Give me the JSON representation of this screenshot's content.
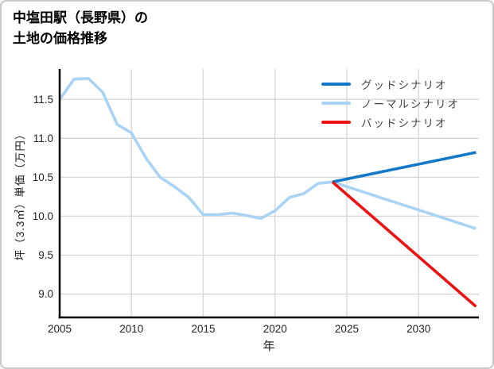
{
  "title": {
    "line1": "中塩田駅（長野県）の",
    "line2": "土地の価格推移"
  },
  "chart_data": {
    "type": "line",
    "title": "中塩田駅（長野県）の土地の価格推移",
    "xlabel": "年",
    "ylabel": "坪（3.3㎡）単価（万円）",
    "x_ticks": [
      2005,
      2010,
      2015,
      2020,
      2025,
      2030
    ],
    "y_ticks": [
      "9.0",
      "9.5",
      "10.0",
      "10.5",
      "11.0",
      "11.5"
    ],
    "xlim": [
      2005,
      2034.2
    ],
    "ylim": [
      8.7,
      11.89
    ],
    "grid": true,
    "grid_color": "#d6d6d6",
    "spine_color": "#000000",
    "legend_position": "upper right",
    "series": [
      {
        "name": "normal-scenario",
        "label": "ノーマルシナリオ",
        "color": "#a8d3f5",
        "x": [
          2005,
          2006,
          2007,
          2008,
          2009,
          2010,
          2011,
          2012,
          2013,
          2014,
          2015,
          2016,
          2017,
          2018,
          2019,
          2020,
          2021,
          2022,
          2023,
          2024,
          2034
        ],
        "y": [
          11.5,
          11.76,
          11.77,
          11.59,
          11.18,
          11.07,
          10.75,
          10.5,
          10.38,
          10.24,
          10.02,
          10.02,
          10.04,
          10.01,
          9.97,
          10.07,
          10.24,
          10.29,
          10.42,
          10.44,
          9.84
        ]
      },
      {
        "name": "good-scenario",
        "label": "グッドシナリオ",
        "color": "#1478c8",
        "x": [
          2024,
          2034
        ],
        "y": [
          10.44,
          10.82
        ]
      },
      {
        "name": "bad-scenario",
        "label": "バッドシナリオ",
        "color": "#ee1111",
        "x": [
          2024,
          2034
        ],
        "y": [
          10.44,
          8.84
        ]
      }
    ],
    "legend_order": [
      "good-scenario",
      "normal-scenario",
      "bad-scenario"
    ]
  }
}
